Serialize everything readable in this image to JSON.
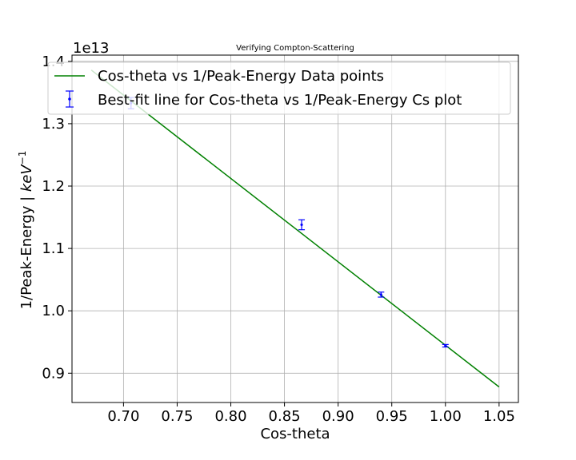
{
  "chart_data": {
    "type": "line",
    "title": "Verifying Compton-Scattering",
    "xlabel": "Cos-theta",
    "ylabel_main": "1/Peak-Energy | ",
    "ylabel_italic": "keV",
    "ylabel_sup": "−1",
    "offset_text": "1e13",
    "xlim": [
      0.652,
      1.068
    ],
    "ylim": [
      0.853,
      1.41
    ],
    "xticks": [
      {
        "value": 0.7,
        "label": "0.70"
      },
      {
        "value": 0.75,
        "label": "0.75"
      },
      {
        "value": 0.8,
        "label": "0.80"
      },
      {
        "value": 0.85,
        "label": "0.85"
      },
      {
        "value": 0.9,
        "label": "0.90"
      },
      {
        "value": 0.95,
        "label": "0.95"
      },
      {
        "value": 1.0,
        "label": "1.00"
      },
      {
        "value": 1.05,
        "label": "1.05"
      }
    ],
    "yticks": [
      {
        "value": 0.9,
        "label": "0.9"
      },
      {
        "value": 1.0,
        "label": "1.0"
      },
      {
        "value": 1.1,
        "label": "1.1"
      },
      {
        "value": 1.2,
        "label": "1.2"
      },
      {
        "value": 1.3,
        "label": "1.3"
      },
      {
        "value": 1.4,
        "label": "1.4"
      }
    ],
    "grid": true,
    "legend_position": "top",
    "series": [
      {
        "name": "Cos-theta vs 1/Peak-Energy Data points",
        "kind": "line",
        "color": "#008000",
        "x": [
          0.67,
          1.05
        ],
        "y": [
          1.386,
          0.878
        ]
      },
      {
        "name": "Best-fit line for Cos-theta vs 1/Peak-Energy Cs plot",
        "kind": "errorbar",
        "color": "#0000ff",
        "x": [
          0.707,
          0.866,
          0.94,
          1.0
        ],
        "y": [
          1.333,
          1.138,
          1.026,
          0.944
        ],
        "yerr": [
          0.009,
          0.008,
          0.004,
          0.002
        ]
      }
    ]
  }
}
